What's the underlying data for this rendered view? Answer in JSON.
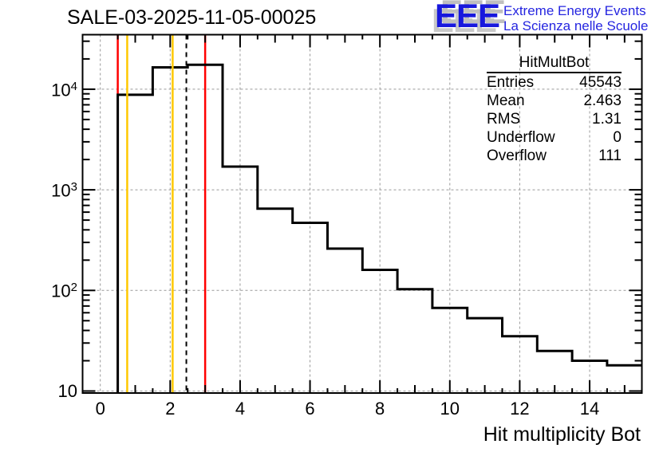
{
  "title": "SALE-03-2025-11-05-00025",
  "logo": {
    "acronym": "EEE",
    "line1": "Extreme Energy Events",
    "line2": "La Scienza nelle Scuole",
    "blue": "#1818dd",
    "shadow_gray": "#bfbfbf"
  },
  "stats": {
    "title": "HitMultBot",
    "rows": [
      {
        "label": "Entries",
        "value": "45543"
      },
      {
        "label": "Mean",
        "value": "2.463"
      },
      {
        "label": "RMS",
        "value": "1.31"
      },
      {
        "label": "Underflow",
        "value": "0"
      },
      {
        "label": "Overflow",
        "value": "111"
      }
    ]
  },
  "chart_data": {
    "type": "bar",
    "subtype": "step-histogram-logy",
    "title": "SALE-03-2025-11-05-00025",
    "xlabel": "Hit multiplicity Bot",
    "ylabel": "",
    "x_range": [
      -0.5,
      15.5
    ],
    "y_range": [
      9.5,
      34800
    ],
    "y_scale": "log",
    "grid": "dashed-gray-at-major-ticks",
    "bin_width": 1,
    "bin_centers": [
      1,
      2,
      3,
      4,
      5,
      6,
      7,
      8,
      9,
      10,
      11,
      12,
      13,
      14,
      15
    ],
    "values": [
      8800,
      16500,
      17500,
      1700,
      650,
      470,
      260,
      160,
      103,
      67,
      53,
      35,
      25,
      20,
      18
    ],
    "x_ticks": [
      {
        "v": 0,
        "label": "0"
      },
      {
        "v": 2,
        "label": "2"
      },
      {
        "v": 4,
        "label": "4"
      },
      {
        "v": 6,
        "label": "6"
      },
      {
        "v": 8,
        "label": "8"
      },
      {
        "v": 10,
        "label": "10"
      },
      {
        "v": 12,
        "label": "12"
      },
      {
        "v": 14,
        "label": "14"
      }
    ],
    "y_ticks": [
      {
        "v": 10,
        "base": "10",
        "exp": ""
      },
      {
        "v": 100,
        "base": "10",
        "exp": "2"
      },
      {
        "v": 1000,
        "base": "10",
        "exp": "3"
      },
      {
        "v": 10000,
        "base": "10",
        "exp": "4"
      }
    ],
    "marker_lines": [
      {
        "x": 0.5,
        "color": "#ff0000",
        "style": "solid",
        "layer": "under"
      },
      {
        "x": 0.77,
        "color": "#ffc800",
        "style": "solid",
        "layer": "over"
      },
      {
        "x": 2.07,
        "color": "#ffc800",
        "style": "solid",
        "layer": "over"
      },
      {
        "x": 2.462,
        "color": "#000000",
        "style": "dashed",
        "layer": "over"
      },
      {
        "x": 3.0,
        "color": "#ff0000",
        "style": "solid",
        "layer": "under"
      }
    ],
    "colors": {
      "histogram_line": "#000000",
      "frame": "#000000",
      "grid": "#999999",
      "red_line": "#ff0000",
      "yellow_line": "#ffc800"
    }
  }
}
